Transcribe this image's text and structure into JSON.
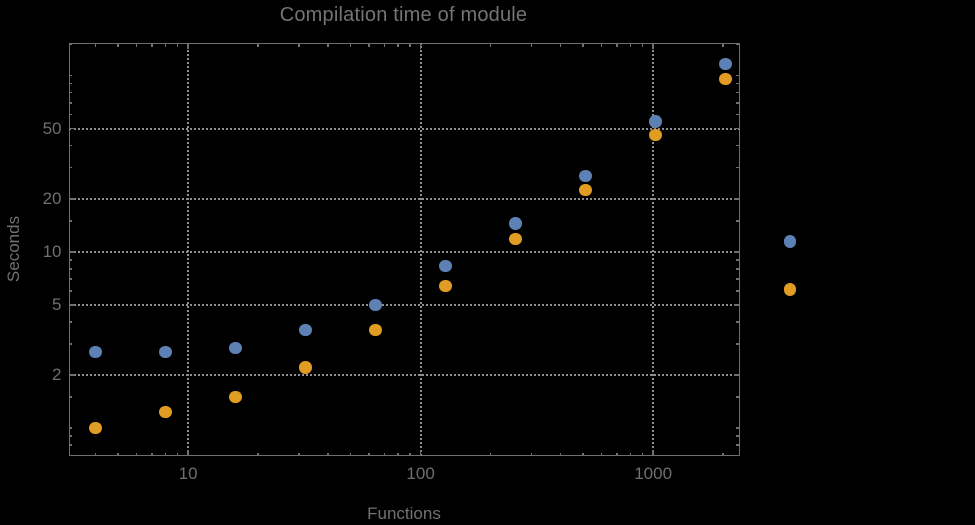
{
  "title": "Compilation time of module",
  "colors": {
    "background": "#000000",
    "frame": "#6f6f6f",
    "grid": "#8f8f8f",
    "text": "#717171",
    "series1": "#5e81b5",
    "series2": "#e19c24"
  },
  "chart_data": {
    "type": "scatter",
    "title": "Compilation time of module",
    "xlabel": "Functions",
    "ylabel": "Seconds",
    "x_scale": "log",
    "y_scale": "log",
    "xlim": [
      3.06,
      2352
    ],
    "ylim": [
      0.693,
      153.5
    ],
    "grid": "dotted",
    "x_gridlines": [
      10,
      100,
      1000
    ],
    "y_gridlines": [
      2,
      5,
      10,
      20,
      50
    ],
    "x_major_ticks": [
      10,
      100,
      1000
    ],
    "x_tick_labels": [
      "10",
      "100",
      "1000"
    ],
    "x_minor_ticks": [
      4,
      5,
      6,
      7,
      8,
      9,
      20,
      30,
      40,
      50,
      60,
      70,
      80,
      90,
      200,
      300,
      400,
      500,
      600,
      700,
      800,
      900,
      2000
    ],
    "y_major_ticks": [
      2,
      5,
      10,
      20,
      50
    ],
    "y_tick_labels": [
      "2",
      "5",
      "10",
      "20",
      "50"
    ],
    "y_minor_ticks": [
      0.8,
      0.9,
      1,
      1.5,
      3,
      4,
      6,
      7,
      8,
      9,
      15,
      30,
      40,
      60,
      70,
      80,
      90,
      100,
      150
    ],
    "x": [
      4,
      8,
      16,
      32,
      64,
      128,
      256,
      512,
      1024,
      2048
    ],
    "series": [
      {
        "name": "series-1-blue",
        "color": "#5e81b5",
        "values": [
          2.7,
          2.7,
          2.85,
          3.6,
          5.0,
          8.3,
          14.5,
          27,
          55,
          117
        ]
      },
      {
        "name": "series-2-orange",
        "color": "#e19c24",
        "values": [
          1.0,
          1.23,
          1.5,
          2.2,
          3.6,
          6.4,
          11.8,
          22.5,
          46,
          96
        ]
      }
    ],
    "legend": {
      "position": "right-of-frame",
      "labels_visible": false,
      "entries": [
        {
          "series": "series-1-blue",
          "marker_color": "#5e81b5",
          "marker_value_seconds": 11.6
        },
        {
          "series": "series-2-orange",
          "marker_color": "#e19c24",
          "marker_value_seconds": 6.1
        }
      ]
    },
    "marker_diameter_px": 12.5
  }
}
